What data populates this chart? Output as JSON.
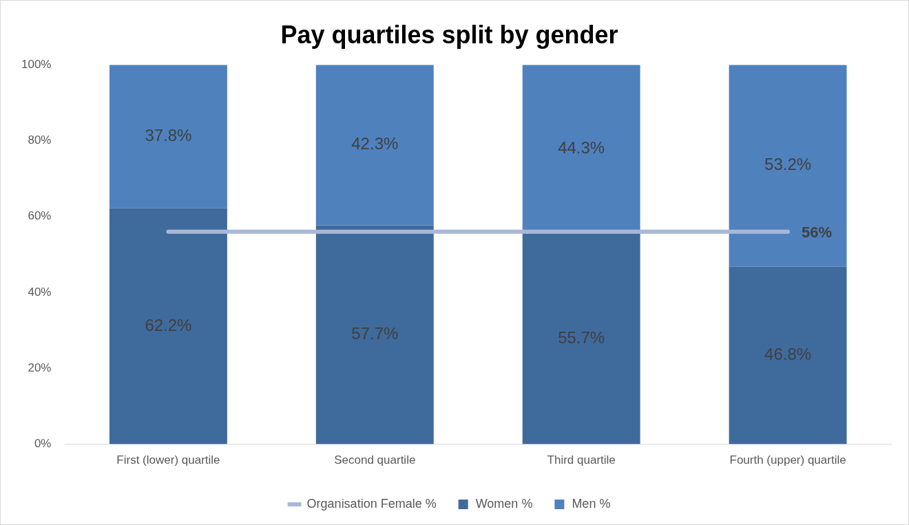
{
  "chart_data": {
    "type": "bar",
    "title": "Pay quartiles split by gender",
    "stacked": true,
    "categories": [
      "First (lower) quartile",
      "Second quartile",
      "Third quartile",
      "Fourth (upper) quartile"
    ],
    "series": [
      {
        "name": "Women %",
        "color": "#3f6a9c",
        "values": [
          62.2,
          57.7,
          55.7,
          46.8
        ],
        "value_labels": [
          "62.2%",
          "57.7%",
          "55.7%",
          "46.8%"
        ]
      },
      {
        "name": "Men %",
        "color": "#4f81bd",
        "values": [
          37.8,
          42.3,
          44.3,
          53.2
        ],
        "value_labels": [
          "37.8%",
          "42.3%",
          "44.3%",
          "53.2%"
        ]
      },
      {
        "name": "Organisation Female %",
        "type": "line",
        "color": "#a9b8d6",
        "values": [
          56,
          56,
          56,
          56
        ],
        "value_labels": [
          null,
          null,
          null,
          "56%"
        ]
      }
    ],
    "ylim": [
      0,
      100
    ],
    "yticks": [
      {
        "value": 0,
        "label": "0%"
      },
      {
        "value": 20,
        "label": "20%"
      },
      {
        "value": 40,
        "label": "40%"
      },
      {
        "value": 60,
        "label": "60%"
      },
      {
        "value": 80,
        "label": "80%"
      },
      {
        "value": 100,
        "label": "100%"
      }
    ],
    "grid": false,
    "legend": "bottom",
    "marker": "none"
  }
}
